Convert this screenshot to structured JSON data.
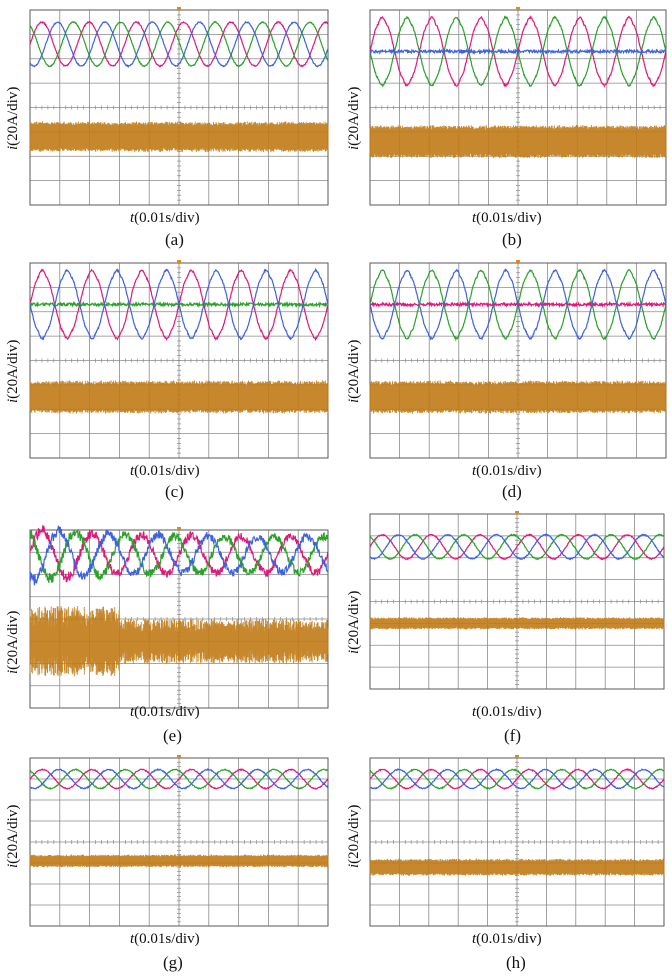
{
  "figure": {
    "colors": {
      "phase_a": "#e0187a",
      "phase_b": "#2aa12a",
      "phase_c": "#3d62e0",
      "lower_trace": "#c07a16",
      "grid": "#8a8a8a",
      "frame": "#5a5a5a"
    }
  },
  "panels": [
    {
      "caption": "(a)",
      "y_label_var": "i",
      "y_label_unit": "(20A/div)",
      "x_label_var": "t",
      "x_label_unit": "(0.01s/div)"
    },
    {
      "caption": "(b)",
      "y_label_var": "i",
      "y_label_unit": "(20A/div)",
      "x_label_var": "t",
      "x_label_unit": "(0.01s/div)"
    },
    {
      "caption": "(c)",
      "y_label_var": "i",
      "y_label_unit": "(20A/div)",
      "x_label_var": "t",
      "x_label_unit": "(0.01s/div)"
    },
    {
      "caption": "(d)",
      "y_label_var": "i",
      "y_label_unit": "(20A/div)",
      "x_label_var": "t",
      "x_label_unit": "(0.01s/div)"
    },
    {
      "caption": "(e)",
      "y_label_var": "i",
      "y_label_unit": "(20A/div)",
      "x_label_var": "t",
      "x_label_unit": "(0.01s/div)"
    },
    {
      "caption": "(f)",
      "y_label_var": "i",
      "y_label_unit": "(20A/div)",
      "x_label_var": "t",
      "x_label_unit": "(0.01s/div)"
    },
    {
      "caption": "(g)",
      "y_label_var": "i",
      "y_label_unit": "(20A/div)",
      "x_label_var": "t",
      "x_label_unit": "(0.01s/div)"
    },
    {
      "caption": "(h)",
      "y_label_var": "i",
      "y_label_unit": "(20A/div)",
      "x_label_var": "t",
      "x_label_unit": "(0.01s/div)"
    }
  ],
  "chart_data": [
    {
      "type": "line",
      "panel": "(a)",
      "xlabel": "t(0.01s/div)",
      "ylabel": "i(20A/div)",
      "x_divisions": 10,
      "y_divisions": 8,
      "x_range_div": [
        0,
        10
      ],
      "series": [
        {
          "name": "phase-a",
          "kind": "three-phase",
          "amplitude_div": 0.9,
          "cycles": 6.3,
          "phase_deg": 0,
          "offset_div": 2.6
        },
        {
          "name": "phase-b",
          "kind": "three-phase",
          "amplitude_div": 0.9,
          "cycles": 6.3,
          "phase_deg": 120,
          "offset_div": 2.6
        },
        {
          "name": "phase-c",
          "kind": "three-phase",
          "amplitude_div": 0.9,
          "cycles": 6.3,
          "phase_deg": 240,
          "offset_div": 2.6
        },
        {
          "name": "lower-trace",
          "kind": "ripple",
          "level_div": -1.2,
          "band_div": 1.2
        }
      ]
    },
    {
      "type": "line",
      "panel": "(b)",
      "xlabel": "t(0.01s/div)",
      "ylabel": "i(20A/div)",
      "x_divisions": 10,
      "y_divisions": 8,
      "x_range_div": [
        0,
        10
      ],
      "series": [
        {
          "name": "phase-a",
          "kind": "two-phase",
          "amplitude_div": 1.4,
          "cycles": 6,
          "phase_deg": 0,
          "offset_div": 2.3
        },
        {
          "name": "phase-b",
          "kind": "two-phase",
          "amplitude_div": 1.4,
          "cycles": 6,
          "phase_deg": 180,
          "offset_div": 2.3
        },
        {
          "name": "phase-c",
          "kind": "flat",
          "amplitude_div": 0.05,
          "cycles": 6,
          "phase_deg": 0,
          "offset_div": 2.3
        },
        {
          "name": "lower-trace",
          "kind": "ripple",
          "level_div": -1.4,
          "band_div": 1.3
        }
      ]
    },
    {
      "type": "line",
      "panel": "(c)",
      "xlabel": "t(0.01s/div)",
      "ylabel": "i(20A/div)",
      "x_divisions": 10,
      "y_divisions": 8,
      "x_range_div": [
        0,
        10
      ],
      "series": [
        {
          "name": "phase-a",
          "kind": "two-phase",
          "amplitude_div": 1.4,
          "cycles": 6,
          "phase_deg": 0,
          "offset_div": 2.3
        },
        {
          "name": "phase-b",
          "kind": "flat",
          "amplitude_div": 0.05,
          "cycles": 6,
          "phase_deg": 0,
          "offset_div": 2.3
        },
        {
          "name": "phase-c",
          "kind": "two-phase",
          "amplitude_div": 1.4,
          "cycles": 6,
          "phase_deg": 180,
          "offset_div": 2.3
        },
        {
          "name": "lower-trace",
          "kind": "ripple",
          "level_div": -1.5,
          "band_div": 1.3
        }
      ]
    },
    {
      "type": "line",
      "panel": "(d)",
      "xlabel": "t(0.01s/div)",
      "ylabel": "i(20A/div)",
      "x_divisions": 10,
      "y_divisions": 8,
      "x_range_div": [
        0,
        10
      ],
      "series": [
        {
          "name": "phase-a",
          "kind": "flat",
          "amplitude_div": 0.05,
          "cycles": 6,
          "phase_deg": 0,
          "offset_div": 2.3
        },
        {
          "name": "phase-b",
          "kind": "two-phase",
          "amplitude_div": 1.4,
          "cycles": 6,
          "phase_deg": 0,
          "offset_div": 2.3
        },
        {
          "name": "phase-c",
          "kind": "two-phase",
          "amplitude_div": 1.4,
          "cycles": 6,
          "phase_deg": 180,
          "offset_div": 2.3
        },
        {
          "name": "lower-trace",
          "kind": "ripple",
          "level_div": -1.5,
          "band_div": 1.3
        }
      ]
    },
    {
      "type": "line",
      "panel": "(e)",
      "xlabel": "t(0.01s/div)",
      "ylabel": "i(20A/div)",
      "x_divisions": 10,
      "y_divisions": 8,
      "x_range_div": [
        0,
        10
      ],
      "series": [
        {
          "name": "phase-a",
          "kind": "three-phase-noisy",
          "amplitude_div": 0.8,
          "cycles": 6,
          "phase_deg": 0,
          "offset_div": 2.9
        },
        {
          "name": "phase-b",
          "kind": "three-phase-noisy",
          "amplitude_div": 0.8,
          "cycles": 6,
          "phase_deg": 120,
          "offset_div": 2.9
        },
        {
          "name": "phase-c",
          "kind": "three-phase-noisy",
          "amplitude_div": 0.8,
          "cycles": 6,
          "phase_deg": 240,
          "offset_div": 2.9
        },
        {
          "name": "lower-trace",
          "kind": "ripple-noisy",
          "level_div": -1.0,
          "band_div": 1.6
        }
      ]
    },
    {
      "type": "line",
      "panel": "(f)",
      "xlabel": "t(0.01s/div)",
      "ylabel": "i(20A/div)",
      "x_divisions": 10,
      "y_divisions": 8,
      "x_range_div": [
        0,
        10
      ],
      "series": [
        {
          "name": "phase-a",
          "kind": "three-phase",
          "amplitude_div": 0.55,
          "cycles": 6,
          "phase_deg": 0,
          "offset_div": 2.5
        },
        {
          "name": "phase-b",
          "kind": "three-phase",
          "amplitude_div": 0.55,
          "cycles": 6,
          "phase_deg": 120,
          "offset_div": 2.5
        },
        {
          "name": "phase-c",
          "kind": "three-phase",
          "amplitude_div": 0.55,
          "cycles": 6,
          "phase_deg": 240,
          "offset_div": 2.5
        },
        {
          "name": "lower-trace",
          "kind": "ripple",
          "level_div": -1.0,
          "band_div": 0.5
        }
      ]
    },
    {
      "type": "line",
      "panel": "(g)",
      "xlabel": "t(0.01s/div)",
      "ylabel": "i(20A/div)",
      "x_divisions": 10,
      "y_divisions": 8,
      "x_range_div": [
        0,
        10
      ],
      "series": [
        {
          "name": "phase-a",
          "kind": "three-phase",
          "amplitude_div": 0.45,
          "cycles": 6,
          "phase_deg": 0,
          "offset_div": 3.0
        },
        {
          "name": "phase-b",
          "kind": "three-phase",
          "amplitude_div": 0.45,
          "cycles": 6,
          "phase_deg": 120,
          "offset_div": 3.0
        },
        {
          "name": "phase-c",
          "kind": "three-phase",
          "amplitude_div": 0.45,
          "cycles": 6,
          "phase_deg": 240,
          "offset_div": 3.0
        },
        {
          "name": "lower-trace",
          "kind": "ripple",
          "level_div": -0.9,
          "band_div": 0.55
        }
      ]
    },
    {
      "type": "line",
      "panel": "(h)",
      "xlabel": "t(0.01s/div)",
      "ylabel": "i(20A/div)",
      "x_divisions": 10,
      "y_divisions": 8,
      "x_range_div": [
        0,
        10
      ],
      "series": [
        {
          "name": "phase-a",
          "kind": "three-phase",
          "amplitude_div": 0.45,
          "cycles": 6,
          "phase_deg": 0,
          "offset_div": 3.0
        },
        {
          "name": "phase-b",
          "kind": "three-phase",
          "amplitude_div": 0.45,
          "cycles": 6,
          "phase_deg": 120,
          "offset_div": 3.0
        },
        {
          "name": "phase-c",
          "kind": "three-phase",
          "amplitude_div": 0.45,
          "cycles": 6,
          "phase_deg": 240,
          "offset_div": 3.0
        },
        {
          "name": "lower-trace",
          "kind": "ripple",
          "level_div": -1.2,
          "band_div": 0.75
        }
      ]
    }
  ]
}
